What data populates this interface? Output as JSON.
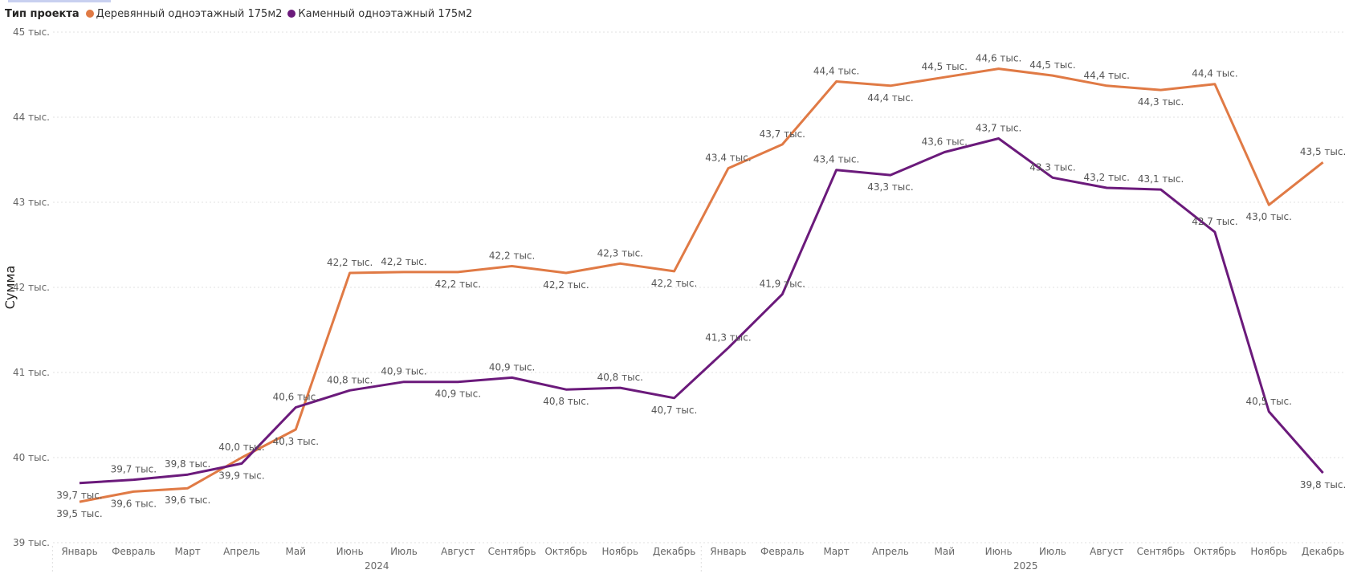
{
  "legend": {
    "title": "Тип проекта",
    "items": [
      {
        "label": "Деревянный одноэтажный 175м2",
        "color": "#E07A45"
      },
      {
        "label": "Каменный одноэтажный 175м2",
        "color": "#6B1A7B"
      }
    ]
  },
  "chart_data": {
    "type": "line",
    "ylabel": "Сумма",
    "ylim": [
      39000,
      45000
    ],
    "yticks": [
      {
        "value": 39000,
        "label": "39 тыс."
      },
      {
        "value": 40000,
        "label": "40 тыс."
      },
      {
        "value": 41000,
        "label": "41 тыс."
      },
      {
        "value": 42000,
        "label": "42 тыс."
      },
      {
        "value": 43000,
        "label": "43 тыс."
      },
      {
        "value": 44000,
        "label": "44 тыс."
      },
      {
        "value": 45000,
        "label": "45 тыс."
      }
    ],
    "grid": true,
    "legend_position": "top-left",
    "categories": [
      "Январь",
      "Февраль",
      "Март",
      "Апрель",
      "Май",
      "Июнь",
      "Июль",
      "Август",
      "Сентябрь",
      "Октябрь",
      "Ноябрь",
      "Декабрь",
      "Январь",
      "Февраль",
      "Март",
      "Апрель",
      "Май",
      "Июнь",
      "Июль",
      "Август",
      "Сентябрь",
      "Октябрь",
      "Ноябрь",
      "Декабрь"
    ],
    "groups": [
      {
        "label": "2024",
        "start": 0,
        "end": 11
      },
      {
        "label": "2025",
        "start": 12,
        "end": 23
      }
    ],
    "series": [
      {
        "name": "Деревянный одноэтажный 175м2",
        "color": "#E07A45",
        "values": [
          39480,
          39600,
          39640,
          40000,
          40330,
          42170,
          42180,
          42180,
          42250,
          42170,
          42280,
          42190,
          43400,
          43680,
          44420,
          44370,
          44470,
          44570,
          44490,
          44370,
          44320,
          44390,
          42970,
          43470
        ],
        "labels": [
          "39,5 тыс.",
          "39,6 тыс.",
          "39,6 тыс.",
          "40,0 тыс.",
          "40,3 тыс.",
          "42,2 тыс.",
          "42,2 тыс.",
          "42,2 тыс.",
          "42,2 тыс.",
          "42,2 тыс.",
          "42,3 тыс.",
          "42,2 тыс.",
          "43,4 тыс.",
          "43,7 тыс.",
          "44,4 тыс.",
          "44,4 тыс.",
          "44,5 тыс.",
          "44,6 тыс.",
          "44,5 тыс.",
          "44,4 тыс.",
          "44,3 тыс.",
          "44,4 тыс.",
          "43,0 тыс.",
          "43,5 тыс."
        ],
        "label_pos": [
          "below",
          "below",
          "below",
          "above",
          "below",
          "above",
          "above",
          "below",
          "above",
          "below",
          "above",
          "below",
          "above",
          "above",
          "above",
          "below",
          "above",
          "above",
          "above",
          "above",
          "below",
          "above",
          "below",
          "above"
        ]
      },
      {
        "name": "Каменный одноэтажный 175м2",
        "color": "#6B1A7B",
        "values": [
          39700,
          39740,
          39800,
          39930,
          40590,
          40790,
          40890,
          40890,
          40940,
          40800,
          40820,
          40700,
          41290,
          41920,
          43380,
          43320,
          43590,
          43750,
          43290,
          43170,
          43150,
          42650,
          40540,
          39820
        ],
        "labels": [
          "39,7 тыс.",
          "39,7 тыс.",
          "39,8 тыс.",
          "39,9 тыс.",
          "40,6 тыс.",
          "40,8 тыс.",
          "40,9 тыс.",
          "40,9 тыс.",
          "40,9 тыс.",
          "40,8 тыс.",
          "40,8 тыс.",
          "40,7 тыс.",
          "41,3 тыс.",
          "41,9 тыс.",
          "43,4 тыс.",
          "43,3 тыс.",
          "43,6 тыс.",
          "43,7 тыс.",
          "43,3 тыс.",
          "43,2 тыс.",
          "43,1 тыс.",
          "42,7 тыс.",
          "40,5 тыс.",
          "39,8 тыс."
        ],
        "label_pos": [
          "below",
          "above",
          "above",
          "below",
          "above",
          "above",
          "above",
          "below",
          "above",
          "below",
          "above",
          "below",
          "above",
          "above",
          "above",
          "below",
          "above",
          "above",
          "above",
          "above",
          "above",
          "above",
          "above",
          "below"
        ]
      }
    ]
  }
}
